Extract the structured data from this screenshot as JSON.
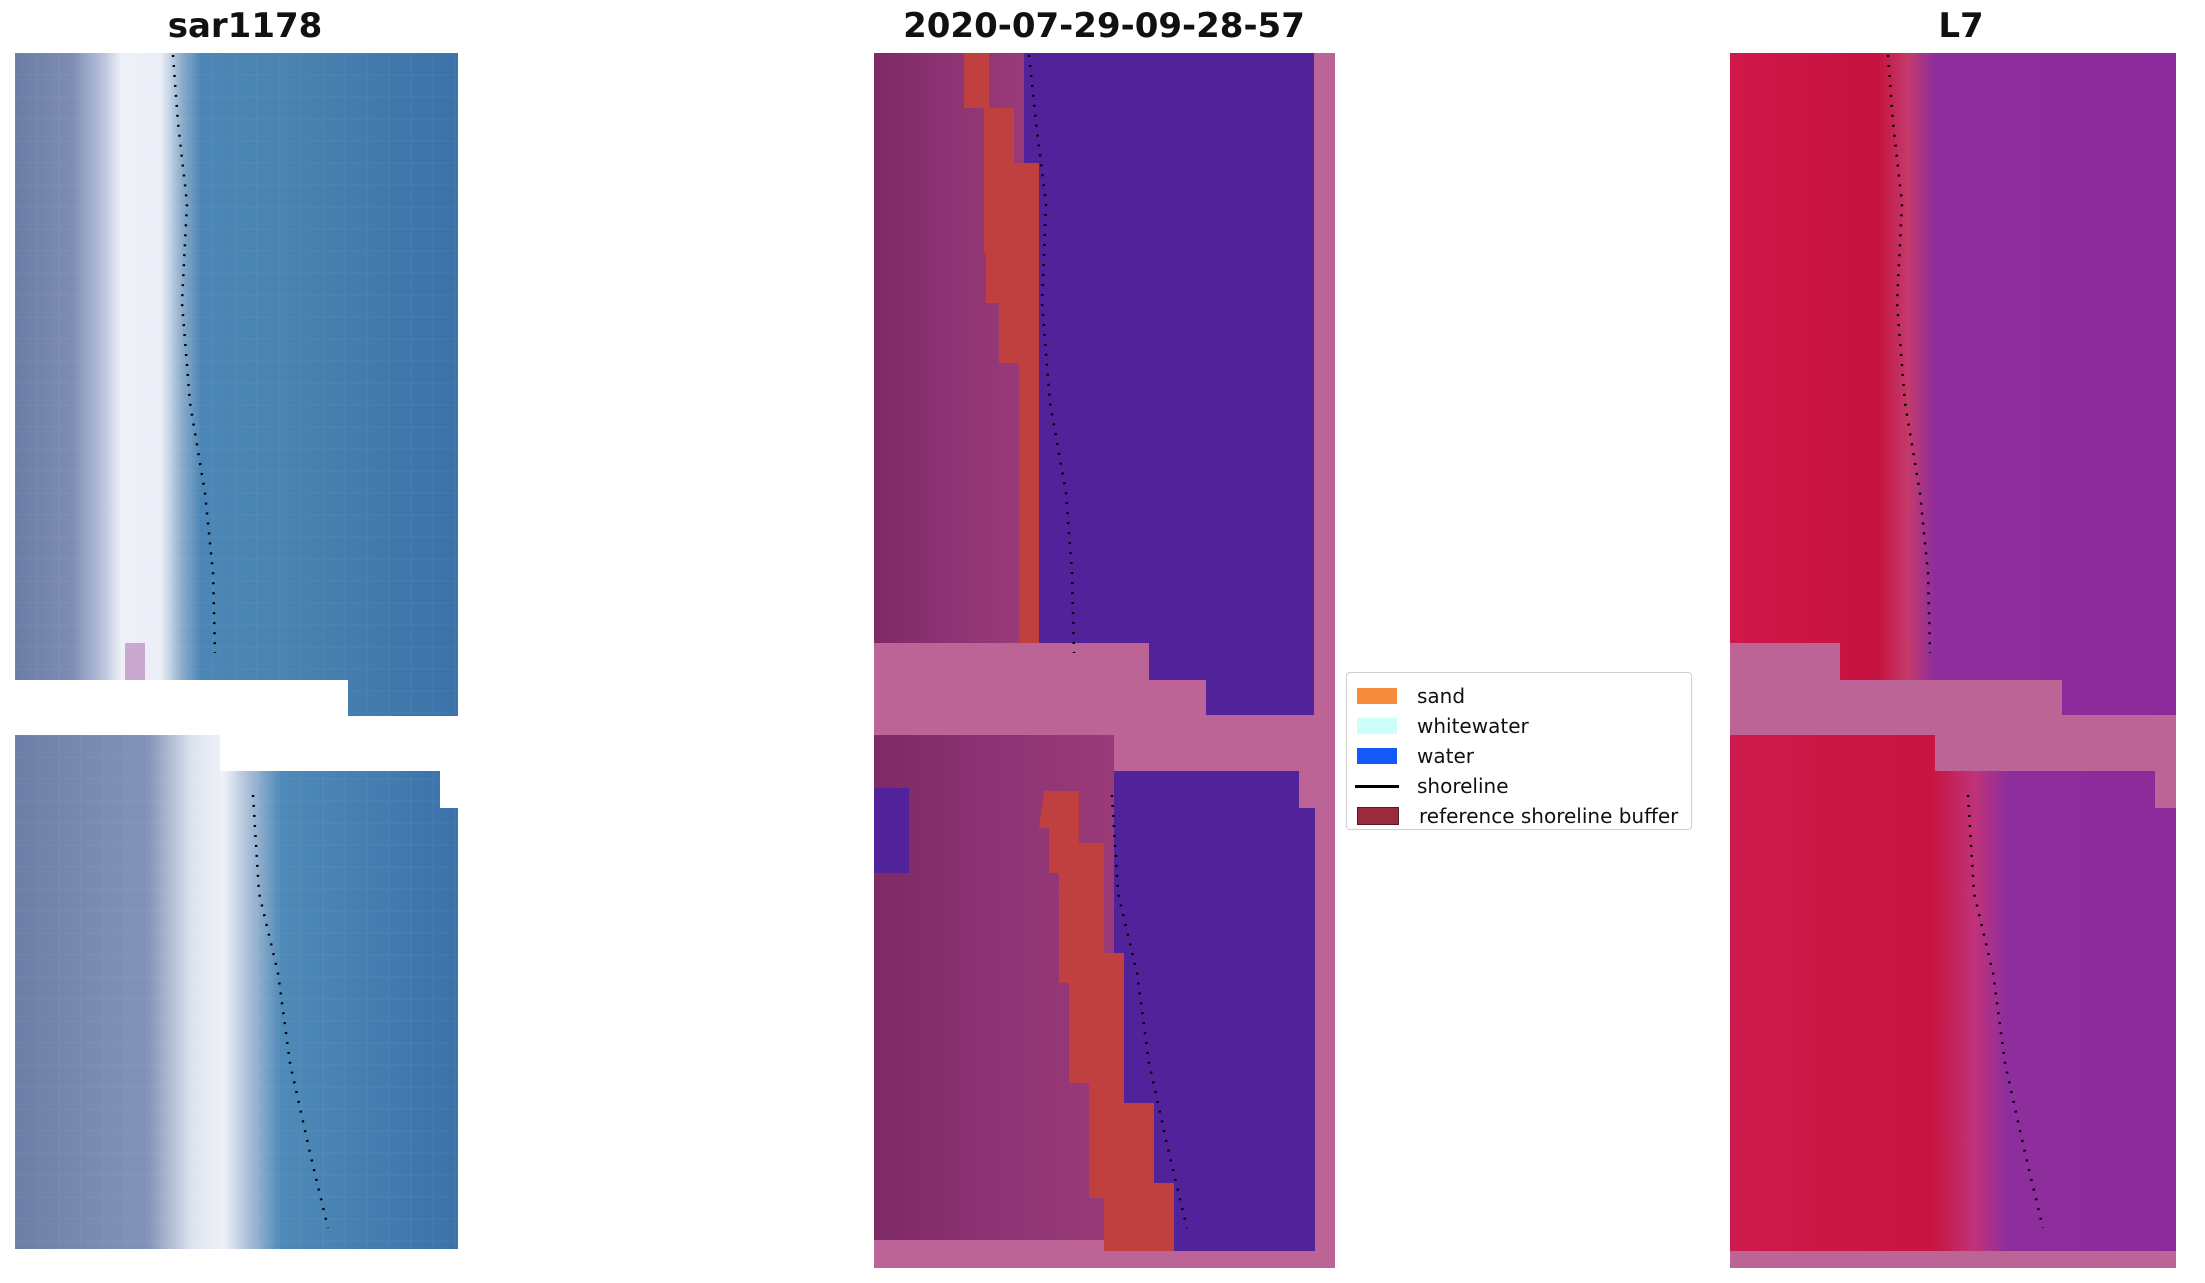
{
  "panels": {
    "left_title": "sar1178",
    "center_title": "2020-07-29-09-28-57",
    "right_title": "L7"
  },
  "legend": {
    "items": [
      {
        "label": "sand",
        "color": "#f58b3b"
      },
      {
        "label": "whitewater",
        "color": "#cdfffa"
      },
      {
        "label": "water",
        "color": "#1259f5"
      },
      {
        "label": "shoreline",
        "color": "#000000"
      },
      {
        "label": "reference shoreline buffer",
        "color": "#9b2c3b"
      }
    ]
  },
  "colors": {
    "ocean_rgb": "#3a74ad",
    "classified_water": "#52229a",
    "classified_land": "#8a2e6e",
    "buffer_overlay": "#c0403f",
    "nodata_pink": "#bc6495",
    "mndwi_land": "#c8123e",
    "mndwi_water": "#8b2b9b"
  }
}
